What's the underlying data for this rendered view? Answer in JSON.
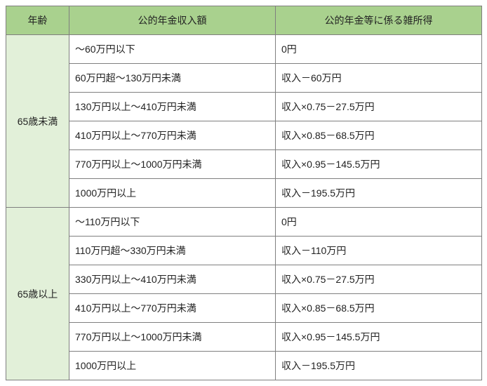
{
  "headers": {
    "age": "年齢",
    "income": "公的年金収入額",
    "misc": "公的年金等に係る雑所得"
  },
  "groups": [
    {
      "age_label": "65歳未満",
      "rows": [
        {
          "income": "～60万円以下",
          "misc": "0円"
        },
        {
          "income": "60万円超～130万円未満",
          "misc": "収入－60万円"
        },
        {
          "income": "130万円以上～410万円未満",
          "misc": "収入×0.75－27.5万円"
        },
        {
          "income": "410万円以上～770万円未満",
          "misc": "収入×0.85－68.5万円"
        },
        {
          "income": "770万円以上～1000万円未満",
          "misc": "収入×0.95－145.5万円"
        },
        {
          "income": "1000万円以上",
          "misc": "収入－195.5万円"
        }
      ]
    },
    {
      "age_label": "65歳以上",
      "rows": [
        {
          "income": "～110万円以下",
          "misc": "0円"
        },
        {
          "income": "110万円超～330万円未満",
          "misc": "収入－110万円"
        },
        {
          "income": "330万円以上～410万円未満",
          "misc": "収入×0.75－27.5万円"
        },
        {
          "income": "410万円以上～770万円未満",
          "misc": "収入×0.85－68.5万円"
        },
        {
          "income": "770万円以上～1000万円未満",
          "misc": "収入×0.95－145.5万円"
        },
        {
          "income": "1000万円以上",
          "misc": "収入－195.5万円"
        }
      ]
    }
  ]
}
